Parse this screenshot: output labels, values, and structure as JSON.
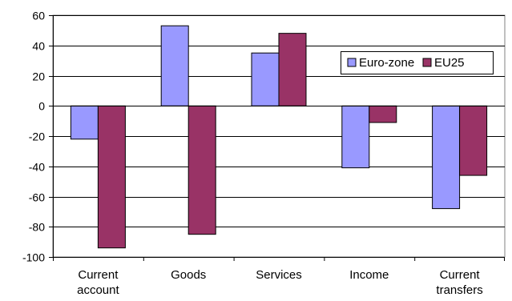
{
  "chart_data": {
    "type": "bar",
    "title": "",
    "xlabel": "",
    "ylabel": "",
    "ylim": [
      -100,
      60
    ],
    "yticks": [
      60,
      40,
      20,
      0,
      -20,
      -40,
      -60,
      -80,
      -100
    ],
    "grid": true,
    "legend_position": "top-right",
    "categories": [
      [
        "Current",
        "account"
      ],
      [
        "Goods"
      ],
      [
        "Services"
      ],
      [
        "Income"
      ],
      [
        "Current",
        "transfers"
      ]
    ],
    "series": [
      {
        "name": "Euro-zone",
        "color": "#9999ff",
        "values": [
          -22,
          53,
          35,
          -41,
          -68
        ]
      },
      {
        "name": "EU25",
        "color": "#993366",
        "values": [
          -94,
          -85,
          48,
          -11,
          -46
        ]
      }
    ]
  }
}
